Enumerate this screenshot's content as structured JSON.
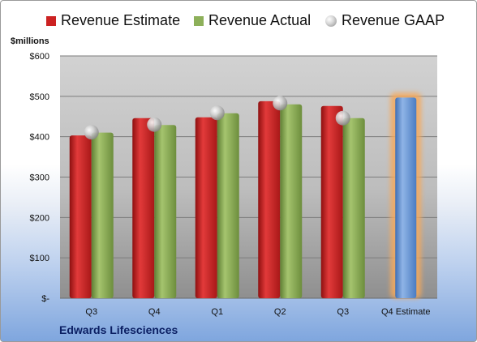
{
  "chart_data": {
    "type": "bar",
    "ylabel": "$millions",
    "categories": [
      "Q3",
      "Q4",
      "Q1",
      "Q2",
      "Q3",
      "Q4 Estimate"
    ],
    "y_ticks": [
      "$-",
      "$100",
      "$200",
      "$300",
      "$400",
      "$500",
      "$600"
    ],
    "ylim": [
      0,
      600
    ],
    "grid": true,
    "legend_placement": "top",
    "series": [
      {
        "name": "Revenue Estimate",
        "kind": "bar",
        "color": "#cc2222",
        "values": [
          403,
          446,
          448,
          488,
          476,
          null
        ]
      },
      {
        "name": "Revenue Actual",
        "kind": "bar",
        "color": "#8db05a",
        "values": [
          410,
          429,
          458,
          480,
          446,
          null
        ]
      },
      {
        "name": "Revenue GAAP",
        "kind": "marker",
        "color": "#c8c8c8",
        "values": [
          411,
          430,
          459,
          483,
          446,
          null
        ]
      },
      {
        "name": "Q4 Estimate",
        "kind": "bar",
        "color": "#6f9bd8",
        "highlight": "#f5a95c",
        "values": [
          null,
          null,
          null,
          null,
          null,
          497
        ]
      }
    ],
    "footer": "Edwards Lifesciences"
  }
}
